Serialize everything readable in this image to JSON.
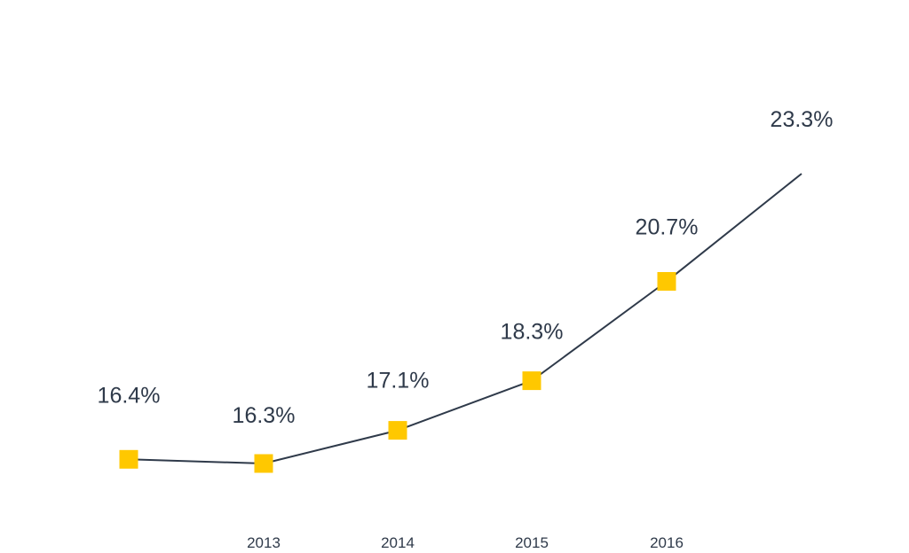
{
  "chart_data": {
    "type": "line",
    "x": [
      "",
      "2013",
      "2014",
      "2015",
      "2016",
      ""
    ],
    "tick_labels": [
      "2013",
      "2014",
      "2015",
      "2016"
    ],
    "series": [
      {
        "values": [
          16.4,
          16.3,
          17.1,
          18.3,
          20.7,
          23.3
        ],
        "labels": [
          "16.4%",
          "16.3%",
          "17.1%",
          "18.3%",
          "20.7%",
          "23.3%"
        ]
      }
    ],
    "ylim": [
      15,
      25
    ],
    "grid": false,
    "legend": "none",
    "last_point_marker": false
  },
  "colors": {
    "line": "#2f3a4a",
    "marker": "#ffc800",
    "text": "#2f3a4a",
    "background": "#ffffff"
  }
}
